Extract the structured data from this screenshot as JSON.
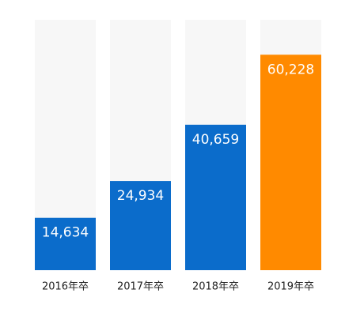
{
  "chart_data": {
    "type": "bar",
    "categories": [
      "2016年卒",
      "2017年卒",
      "2018年卒",
      "2019年卒"
    ],
    "values": [
      14634,
      24934,
      40659,
      60228
    ],
    "value_labels": [
      "14,634",
      "24,934",
      "40,659",
      "60,228"
    ],
    "colors": [
      "#0b6ccb",
      "#0b6ccb",
      "#0b6ccb",
      "#ff8a00"
    ],
    "track_color": "#f7f7f7",
    "ylim": [
      0,
      70000
    ]
  }
}
